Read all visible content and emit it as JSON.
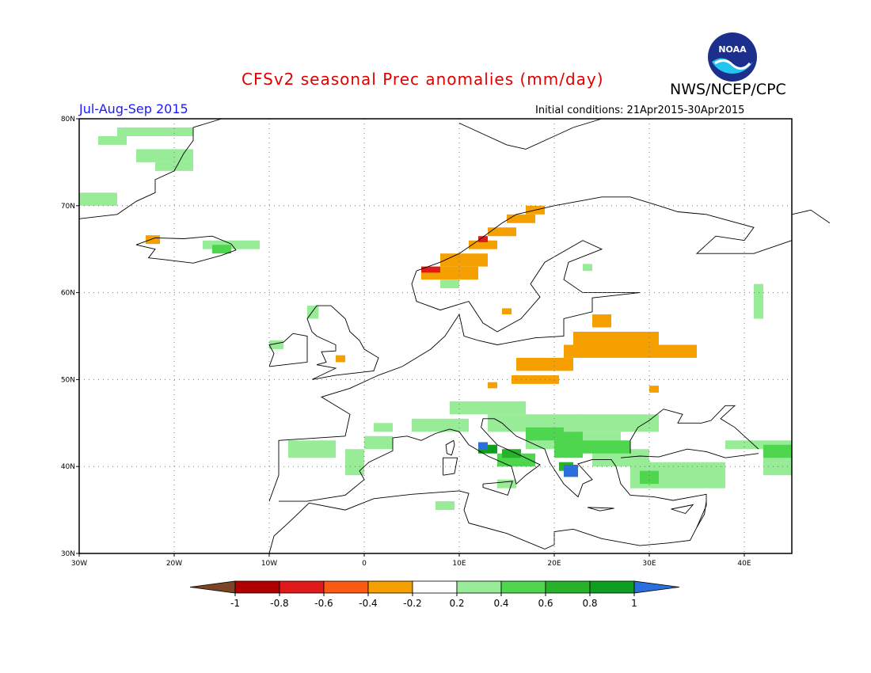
{
  "header": {
    "title": "CFSv2 seasonal Prec anomalies (mm/day)",
    "org": "NWS/NCEP/CPC",
    "period": "Jul-Aug-Sep 2015",
    "initial_conditions": "Initial conditions: 21Apr2015-30Apr2015",
    "logo_text": "NOAA"
  },
  "map": {
    "lon_range": [
      -30,
      45
    ],
    "lat_range": [
      30,
      80
    ],
    "lat_ticks": [
      {
        "value": 80,
        "label": "80N"
      },
      {
        "value": 70,
        "label": "70N"
      },
      {
        "value": 60,
        "label": "60N"
      },
      {
        "value": 50,
        "label": "50N"
      },
      {
        "value": 40,
        "label": "40N"
      },
      {
        "value": 30,
        "label": "30N"
      }
    ],
    "lon_ticks": [
      {
        "value": -30,
        "label": "30W"
      },
      {
        "value": -20,
        "label": "20W"
      },
      {
        "value": -10,
        "label": "10W"
      },
      {
        "value": 0,
        "label": "0"
      },
      {
        "value": 10,
        "label": "10E"
      },
      {
        "value": 20,
        "label": "20E"
      },
      {
        "value": 30,
        "label": "30E"
      },
      {
        "value": 40,
        "label": "40E"
      }
    ],
    "colors": {
      "gt1": "#2a6fdb",
      "p08_1": "#0f9e1f",
      "p06_08": "#26b32a",
      "p04_06": "#4fd64f",
      "p02_04": "#98ec98",
      "m04_02": "#f5a000",
      "m06_04": "#f95a14",
      "m08_06": "#e01a1a",
      "m1_08": "#b00000",
      "ltm1": "#7a4525",
      "coast": "#000000",
      "grid": "#777777"
    },
    "anomaly_cells": [
      {
        "lon": -26,
        "lat": 78,
        "cat": "p02_04",
        "w": 8,
        "h": 1
      },
      {
        "lon": -28,
        "lat": 77,
        "cat": "p02_04",
        "w": 3,
        "h": 1
      },
      {
        "lon": -24,
        "lat": 75,
        "cat": "p02_04",
        "w": 6,
        "h": 1.5
      },
      {
        "lon": -22,
        "lat": 74,
        "cat": "p02_04",
        "w": 4,
        "h": 1
      },
      {
        "lon": -30,
        "lat": 70,
        "cat": "p02_04",
        "w": 4,
        "h": 1.5
      },
      {
        "lon": -17,
        "lat": 65,
        "cat": "p02_04",
        "w": 6,
        "h": 1
      },
      {
        "lon": -16,
        "lat": 64.5,
        "cat": "p04_06",
        "w": 2,
        "h": 1
      },
      {
        "lon": -23,
        "lat": 65.6,
        "cat": "m04_02",
        "w": 1.5,
        "h": 1
      },
      {
        "lon": 6,
        "lat": 61.5,
        "cat": "m04_02",
        "w": 6,
        "h": 1.5
      },
      {
        "lon": 8,
        "lat": 63,
        "cat": "m04_02",
        "w": 5,
        "h": 1.5
      },
      {
        "lon": 11,
        "lat": 65,
        "cat": "m04_02",
        "w": 3,
        "h": 1
      },
      {
        "lon": 13,
        "lat": 66.5,
        "cat": "m04_02",
        "w": 3,
        "h": 1
      },
      {
        "lon": 15,
        "lat": 68,
        "cat": "m04_02",
        "w": 3,
        "h": 1
      },
      {
        "lon": 17,
        "lat": 69,
        "cat": "m04_02",
        "w": 2,
        "h": 1
      },
      {
        "lon": 6,
        "lat": 62.3,
        "cat": "m08_06",
        "w": 2,
        "h": 0.7
      },
      {
        "lon": 12,
        "lat": 65.8,
        "cat": "m08_06",
        "w": 1,
        "h": 0.7
      },
      {
        "lon": 8,
        "lat": 60.5,
        "cat": "p02_04",
        "w": 2,
        "h": 1
      },
      {
        "lon": 14.5,
        "lat": 57.5,
        "cat": "m04_02",
        "w": 1,
        "h": 0.7
      },
      {
        "lon": 24,
        "lat": 56,
        "cat": "m04_02",
        "w": 2,
        "h": 1.5
      },
      {
        "lon": 22,
        "lat": 54,
        "cat": "m04_02",
        "w": 9,
        "h": 1.5
      },
      {
        "lon": 21,
        "lat": 52.5,
        "cat": "m04_02",
        "w": 14,
        "h": 1.5
      },
      {
        "lon": 16,
        "lat": 51,
        "cat": "m04_02",
        "w": 6,
        "h": 1.5
      },
      {
        "lon": 15.5,
        "lat": 49.5,
        "cat": "m04_02",
        "w": 5,
        "h": 1
      },
      {
        "lon": 13,
        "lat": 49,
        "cat": "m04_02",
        "w": 1,
        "h": 0.7
      },
      {
        "lon": 30,
        "lat": 48.5,
        "cat": "m04_02",
        "w": 1,
        "h": 0.8
      },
      {
        "lon": -3,
        "lat": 52,
        "cat": "m04_02",
        "w": 1,
        "h": 0.8
      },
      {
        "lon": 41,
        "lat": 57,
        "cat": "p02_04",
        "w": 1,
        "h": 4
      },
      {
        "lon": -6,
        "lat": 57,
        "cat": "p02_04",
        "w": 1.2,
        "h": 1.5
      },
      {
        "lon": -10,
        "lat": 53.5,
        "cat": "p02_04",
        "w": 1.5,
        "h": 1
      },
      {
        "lon": 23,
        "lat": 62.5,
        "cat": "p02_04",
        "w": 1,
        "h": 0.8
      },
      {
        "lon": -8,
        "lat": 41,
        "cat": "p02_04",
        "w": 5,
        "h": 2
      },
      {
        "lon": -2,
        "lat": 39,
        "cat": "p02_04",
        "w": 2,
        "h": 3
      },
      {
        "lon": 0,
        "lat": 42,
        "cat": "p02_04",
        "w": 3,
        "h": 1.5
      },
      {
        "lon": 1,
        "lat": 44,
        "cat": "p02_04",
        "w": 2,
        "h": 1
      },
      {
        "lon": 5,
        "lat": 44,
        "cat": "p02_04",
        "w": 6,
        "h": 1.5
      },
      {
        "lon": 9,
        "lat": 46,
        "cat": "p02_04",
        "w": 8,
        "h": 1.5
      },
      {
        "lon": 13,
        "lat": 44,
        "cat": "p02_04",
        "w": 10,
        "h": 2
      },
      {
        "lon": 17,
        "lat": 42,
        "cat": "p02_04",
        "w": 10,
        "h": 2
      },
      {
        "lon": 22,
        "lat": 44,
        "cat": "p02_04",
        "w": 9,
        "h": 2
      },
      {
        "lon": 24,
        "lat": 40,
        "cat": "p02_04",
        "w": 6,
        "h": 2
      },
      {
        "lon": 28,
        "lat": 37.5,
        "cat": "p02_04",
        "w": 10,
        "h": 3
      },
      {
        "lon": 38,
        "lat": 42,
        "cat": "p02_04",
        "w": 7,
        "h": 1
      },
      {
        "lon": 42,
        "lat": 39,
        "cat": "p02_04",
        "w": 3,
        "h": 2.5
      },
      {
        "lon": 7.5,
        "lat": 35,
        "cat": "p02_04",
        "w": 2,
        "h": 1
      },
      {
        "lon": 14,
        "lat": 37.5,
        "cat": "p02_04",
        "w": 2,
        "h": 1
      },
      {
        "lon": 14,
        "lat": 40,
        "cat": "p04_06",
        "w": 4,
        "h": 1.5
      },
      {
        "lon": 17,
        "lat": 43,
        "cat": "p04_06",
        "w": 4,
        "h": 1.5
      },
      {
        "lon": 20,
        "lat": 41,
        "cat": "p04_06",
        "w": 3,
        "h": 3
      },
      {
        "lon": 23,
        "lat": 41.5,
        "cat": "p04_06",
        "w": 5,
        "h": 1.5
      },
      {
        "lon": 29,
        "lat": 38,
        "cat": "p04_06",
        "w": 2,
        "h": 1.5
      },
      {
        "lon": 42,
        "lat": 41,
        "cat": "p04_06",
        "w": 3,
        "h": 1.5
      },
      {
        "lon": 14.5,
        "lat": 41,
        "cat": "p06_08",
        "w": 2,
        "h": 1
      },
      {
        "lon": 20.5,
        "lat": 39.5,
        "cat": "p06_08",
        "w": 1.5,
        "h": 1
      },
      {
        "lon": 12,
        "lat": 41.5,
        "cat": "p08_1",
        "w": 2,
        "h": 1
      },
      {
        "lon": 21,
        "lat": 38.8,
        "cat": "gt1",
        "w": 1.5,
        "h": 1.4
      },
      {
        "lon": 12,
        "lat": 42,
        "cat": "gt1",
        "w": 1,
        "h": 0.8
      }
    ]
  },
  "colorbar": {
    "labels": [
      "-1",
      "-0.8",
      "-0.6",
      "-0.4",
      "-0.2",
      "0.2",
      "0.4",
      "0.6",
      "0.8",
      "1"
    ],
    "colors": [
      "#b00000",
      "#e01a1a",
      "#f95a14",
      "#f5a000",
      "#ffffff",
      "#98ec98",
      "#4fd64f",
      "#26b32a",
      "#0f9e1f"
    ],
    "low_color": "#7a4525",
    "high_color": "#2a6fdb"
  }
}
